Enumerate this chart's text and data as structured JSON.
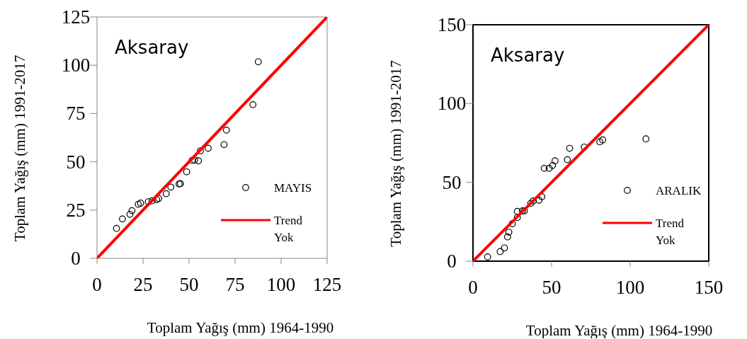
{
  "chart_data": [
    {
      "type": "scatter",
      "title": "Aksaray",
      "xlabel": "Toplam Yağış (mm) 1964-1990",
      "ylabel": "Toplam Yağış (mm) 1991-2017",
      "xlim": [
        0,
        125
      ],
      "ylim": [
        0,
        125
      ],
      "xticks": [
        0,
        25,
        50,
        75,
        100,
        125
      ],
      "yticks": [
        0,
        25,
        50,
        75,
        100,
        125
      ],
      "grid": false,
      "legend": "bottom right",
      "series": [
        {
          "name": "MAYIS",
          "color": "#000000",
          "marker": "circle",
          "x": [
            10.6,
            13.8,
            17.9,
            19,
            22.4,
            23.7,
            27.9,
            29.9,
            32.4,
            33.5,
            37.6,
            40.1,
            44.6,
            45.3,
            48.7,
            51.7,
            53,
            55.1,
            56.2,
            60.4,
            69,
            70.3,
            84.7,
            87.6
          ],
          "values": [
            15.5,
            20.4,
            22.8,
            24.7,
            28,
            28.6,
            29.3,
            29.8,
            30.4,
            31,
            33.5,
            36.9,
            38.5,
            38.7,
            44.8,
            50.7,
            50.9,
            50.5,
            55.7,
            57,
            58.9,
            66.4,
            79.6,
            101.8
          ]
        },
        {
          "name": "Trend Yok",
          "type": "line",
          "color": "#ff0000",
          "marker": "none",
          "x": [
            0,
            125
          ],
          "values": [
            0,
            125
          ]
        }
      ]
    },
    {
      "type": "scatter",
      "title": "Aksaray",
      "xlabel": "Toplam Yağış (mm) 1964-1990",
      "ylabel": "Toplam Yağış (mm) 1991-2017",
      "xlim": [
        0,
        150
      ],
      "ylim": [
        0,
        150
      ],
      "xticks": [
        0,
        50,
        100,
        150
      ],
      "yticks": [
        0,
        50,
        100,
        150
      ],
      "grid": false,
      "legend": "bottom right",
      "series": [
        {
          "name": "ARALIK",
          "color": "#000000",
          "marker": "circle",
          "x": [
            9.3,
            17.3,
            20,
            22,
            22.8,
            25,
            28.2,
            28.2,
            31.5,
            32.7,
            36.8,
            38.3,
            42,
            43.8,
            45.3,
            48.5,
            50.6,
            52.2,
            60,
            61.5,
            70.8,
            80.7,
            82.5,
            110
          ],
          "values": [
            2.7,
            6.1,
            8.4,
            15.4,
            18.4,
            23.7,
            27.7,
            31.6,
            31.9,
            31.9,
            36.7,
            38.2,
            38.7,
            40.9,
            58.9,
            58.9,
            60.7,
            63.7,
            64.4,
            71.6,
            72.4,
            75.7,
            76.9,
            77.6
          ]
        },
        {
          "name": "Trend Yok",
          "type": "line",
          "color": "#ff0000",
          "marker": "none",
          "x": [
            0,
            150
          ],
          "values": [
            0,
            150
          ]
        }
      ]
    }
  ]
}
